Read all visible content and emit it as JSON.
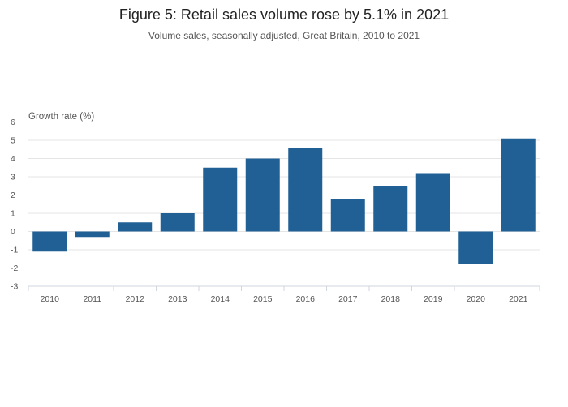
{
  "chart_data": {
    "type": "bar",
    "title": "Figure 5: Retail sales volume rose by 5.1% in 2021",
    "subtitle": "Volume sales, seasonally adjusted, Great Britain, 2010 to 2021",
    "ylabel": "Growth rate (%)",
    "xlabel": "",
    "categories": [
      "2010",
      "2011",
      "2012",
      "2013",
      "2014",
      "2015",
      "2016",
      "2017",
      "2018",
      "2019",
      "2020",
      "2021"
    ],
    "values": [
      -1.1,
      -0.3,
      0.5,
      1.0,
      3.5,
      4.0,
      4.6,
      1.8,
      2.5,
      3.2,
      -1.8,
      5.1
    ],
    "ylim": [
      -3,
      6
    ],
    "yticks": [
      6,
      5,
      4,
      3,
      2,
      1,
      0,
      -1,
      -2,
      -3
    ],
    "grid": true,
    "legend": "none",
    "bar_color": "#206095"
  }
}
